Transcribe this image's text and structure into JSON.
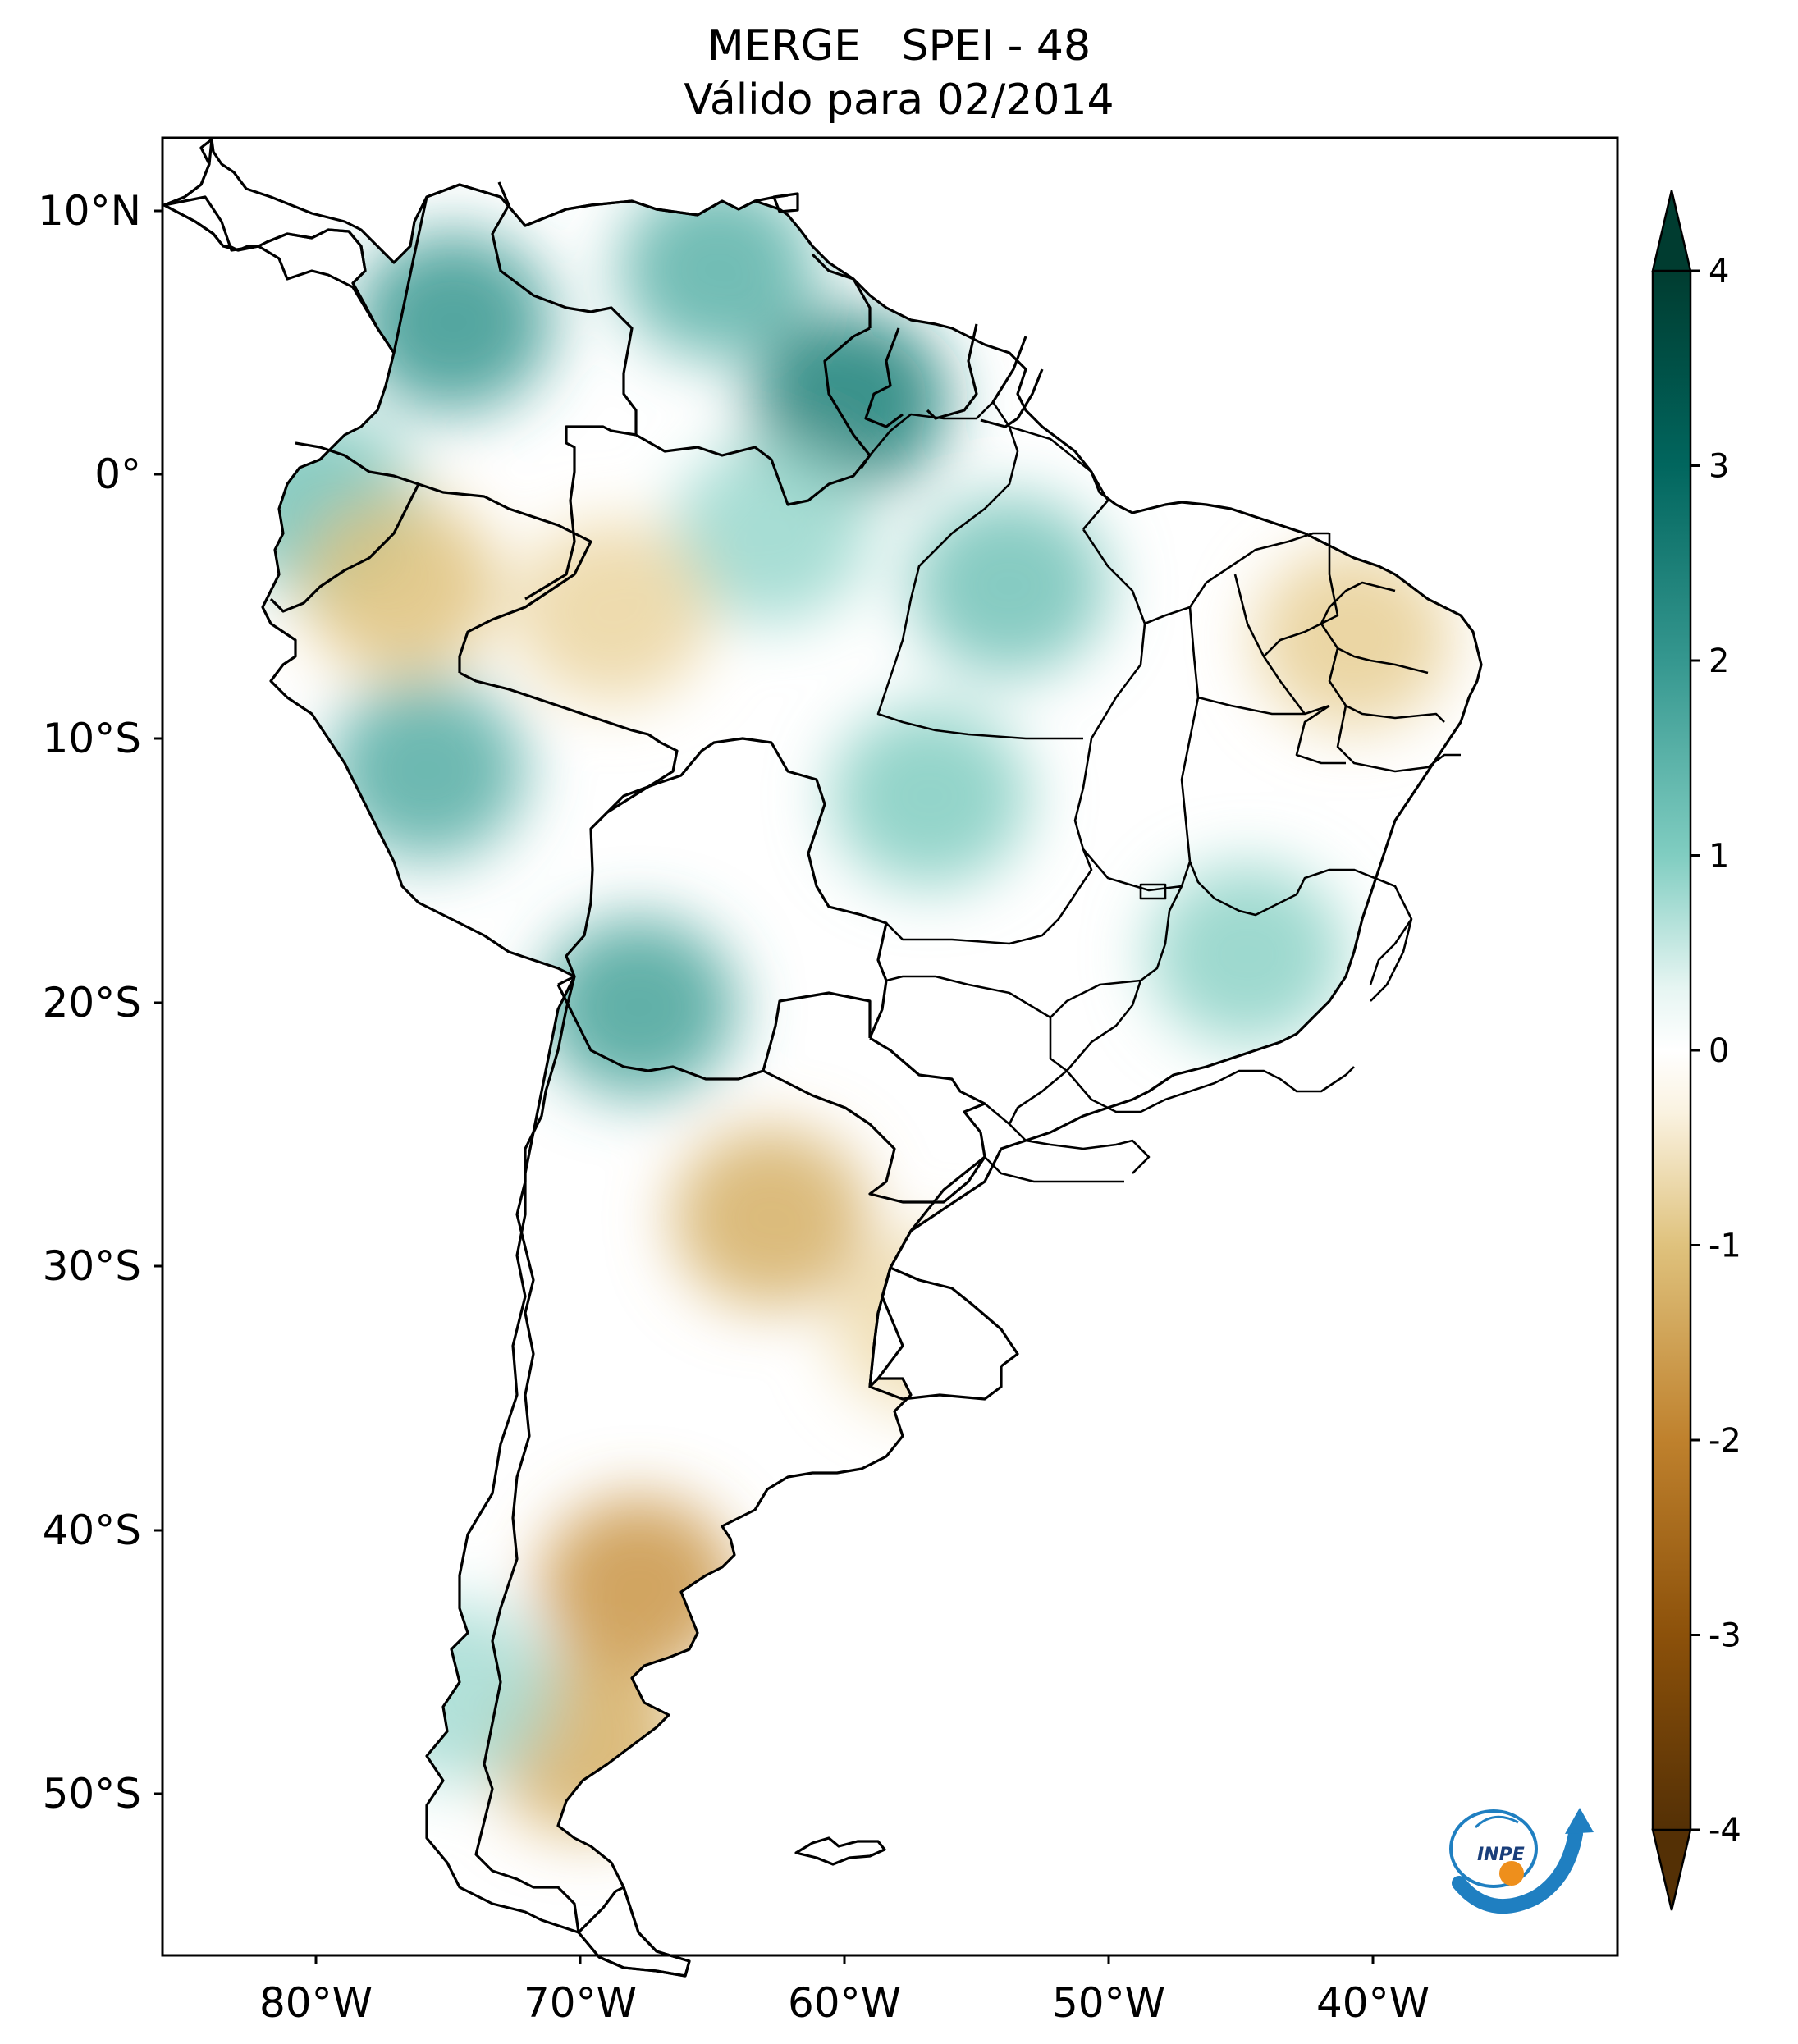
{
  "title": {
    "line1": "MERGE   SPEI - 48",
    "line2": "Válido para 02/2014"
  },
  "map": {
    "lat_ticks": [
      "10°N",
      "0°",
      "10°S",
      "20°S",
      "30°S",
      "40°S",
      "50°S"
    ],
    "lon_ticks": [
      "80°W",
      "70°W",
      "60°W",
      "50°W",
      "40°W"
    ],
    "lat_range": [
      -56,
      13
    ],
    "lon_range": [
      -85,
      -30
    ],
    "anomaly_regions": [
      {
        "name": "colombia-north",
        "lon": -74,
        "lat": 6,
        "value": 2.0
      },
      {
        "name": "venezuela",
        "lon": -64,
        "lat": 8,
        "value": 1.5
      },
      {
        "name": "guyana",
        "lon": -59,
        "lat": 3,
        "value": 2.5
      },
      {
        "name": "ecuador",
        "lon": -79,
        "lat": -1,
        "value": 1.2
      },
      {
        "name": "peru-central",
        "lon": -75,
        "lat": -11,
        "value": 1.6
      },
      {
        "name": "bolivia-west",
        "lon": -67,
        "lat": -20,
        "value": 1.8
      },
      {
        "name": "amazonas",
        "lon": -62,
        "lat": -2,
        "value": 0.8
      },
      {
        "name": "para",
        "lon": -53,
        "lat": -4,
        "value": 1.2
      },
      {
        "name": "mato-grosso",
        "lon": -56,
        "lat": -12,
        "value": 1.0
      },
      {
        "name": "minas-gerais",
        "lon": -44,
        "lat": -18,
        "value": 0.9
      },
      {
        "name": "northeast-brazil",
        "lon": -40,
        "lat": -6,
        "value": -0.8
      },
      {
        "name": "peru-north",
        "lon": -76,
        "lat": -4,
        "value": -1.0
      },
      {
        "name": "amazonas-south",
        "lon": -68,
        "lat": -5,
        "value": -0.7
      },
      {
        "name": "argentina-north",
        "lon": -62,
        "lat": -28,
        "value": -1.3
      },
      {
        "name": "uruguay",
        "lon": -56,
        "lat": -32,
        "value": -0.6
      },
      {
        "name": "patagonia",
        "lon": -67,
        "lat": -42,
        "value": -1.7
      },
      {
        "name": "patagonia-south",
        "lon": -69,
        "lat": -48,
        "value": -1.3
      },
      {
        "name": "chile-south",
        "lon": -74,
        "lat": -46,
        "value": 0.7
      }
    ]
  },
  "colorbar": {
    "tick_labels": [
      "4",
      "3",
      "2",
      "1",
      "0",
      "-1",
      "-2",
      "-3",
      "-4"
    ],
    "min": -4,
    "max": 4,
    "extend": "both",
    "colors": [
      "#543005",
      "#8c510a",
      "#bf812d",
      "#dfc27d",
      "#f6e8c3",
      "#ffffff",
      "#c7eae5",
      "#80cdc1",
      "#35978f",
      "#01665e",
      "#003c30"
    ]
  },
  "logo": {
    "text": "INPE"
  }
}
